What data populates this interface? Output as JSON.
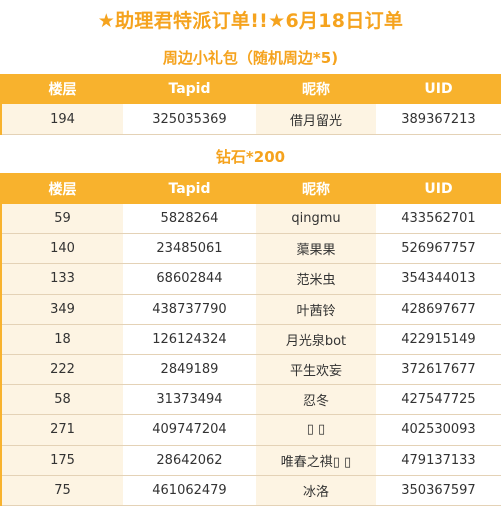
{
  "title": "★助理君特派订单!!★6月18日订单",
  "sections": [
    {
      "title": "周边小礼包（随机周边*5)",
      "headers": [
        "楼层",
        "Tapid",
        "昵称",
        "UID"
      ],
      "rows": [
        [
          "194",
          "325035369",
          "借月留光",
          "389367213"
        ]
      ]
    },
    {
      "title": "钻石*200",
      "headers": [
        "楼层",
        "Tapid",
        "昵称",
        "UID"
      ],
      "rows": [
        [
          "59",
          "5828264",
          "qingmu",
          "433562701"
        ],
        [
          "140",
          "23485061",
          "蕖果果",
          "526967757"
        ],
        [
          "133",
          "68602844",
          "范米虫",
          "354344013"
        ],
        [
          "349",
          "438737790",
          "叶茜铃",
          "428697677"
        ],
        [
          "18",
          "126124324",
          "月光泉bot",
          "422915149"
        ],
        [
          "222",
          "2849189",
          "平生欢妄",
          "372617677"
        ],
        [
          "58",
          "31373494",
          "忍冬",
          "427547725"
        ],
        [
          "271",
          "409747204",
          "▯ ▯",
          "402530093"
        ],
        [
          "175",
          "28642062",
          "唯春之祺▯ ▯",
          "479137133"
        ],
        [
          "75",
          "461062479",
          "冰洛",
          "350367597"
        ]
      ]
    }
  ],
  "colors": {
    "accent": "#f5a31e",
    "header_bg": "#f8b22d",
    "row_tint": "#fdf4e3"
  }
}
